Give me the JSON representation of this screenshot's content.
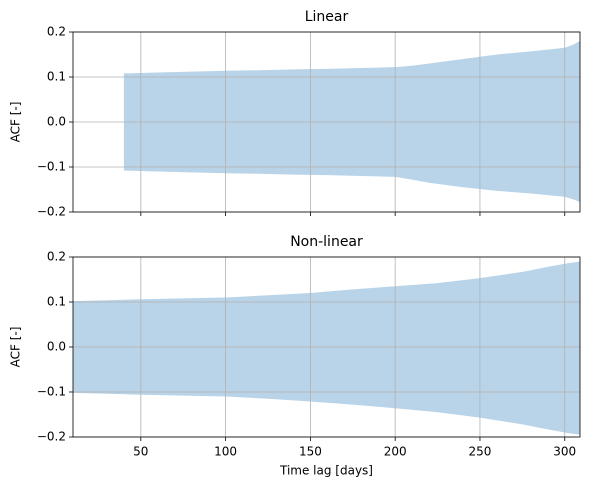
{
  "chart_data": [
    {
      "type": "area",
      "title": "Linear",
      "ylabel": "ACF [-]",
      "color": "#b9d4e8",
      "grid": true,
      "x": [
        40,
        60,
        80,
        100,
        120,
        140,
        160,
        180,
        200,
        210,
        220,
        240,
        260,
        280,
        300,
        305,
        309
      ],
      "upper": [
        0.108,
        0.11,
        0.112,
        0.114,
        0.115,
        0.117,
        0.118,
        0.12,
        0.122,
        0.125,
        0.13,
        0.14,
        0.15,
        0.157,
        0.165,
        0.172,
        0.18
      ],
      "lower": [
        -0.108,
        -0.11,
        -0.112,
        -0.114,
        -0.115,
        -0.117,
        -0.118,
        -0.12,
        -0.122,
        -0.128,
        -0.135,
        -0.145,
        -0.153,
        -0.159,
        -0.166,
        -0.172,
        -0.178
      ],
      "xlim": [
        10,
        309
      ],
      "ylim": [
        -0.2,
        0.2
      ],
      "xticks": [
        50,
        100,
        150,
        200,
        250,
        300
      ],
      "yticks": [
        {
          "value": -0.2,
          "label": "−0.2"
        },
        {
          "value": -0.1,
          "label": "−0.1"
        },
        {
          "value": 0,
          "label": "0.0"
        },
        0.1,
        0.2
      ]
    },
    {
      "type": "area",
      "title": "Non-linear",
      "ylabel": "ACF [-]",
      "xlabel": "Time lag [days]",
      "color": "#b9d4e8",
      "grid": true,
      "x": [
        10,
        30,
        50,
        75,
        100,
        125,
        150,
        175,
        200,
        225,
        250,
        275,
        290,
        300,
        309
      ],
      "upper": [
        0.102,
        0.104,
        0.106,
        0.108,
        0.11,
        0.115,
        0.12,
        0.128,
        0.135,
        0.142,
        0.153,
        0.167,
        0.178,
        0.185,
        0.19
      ],
      "lower": [
        -0.102,
        -0.104,
        -0.106,
        -0.108,
        -0.11,
        -0.115,
        -0.121,
        -0.128,
        -0.136,
        -0.145,
        -0.157,
        -0.172,
        -0.183,
        -0.19,
        -0.195
      ],
      "xlim": [
        10,
        309
      ],
      "ylim": [
        -0.2,
        0.2
      ],
      "xticks": [
        50,
        100,
        150,
        200,
        250,
        300
      ],
      "yticks": [
        {
          "value": -0.2,
          "label": "−0.2"
        },
        {
          "value": -0.1,
          "label": "−0.1"
        },
        {
          "value": 0,
          "label": "0.0"
        },
        0.1,
        0.2
      ]
    }
  ]
}
